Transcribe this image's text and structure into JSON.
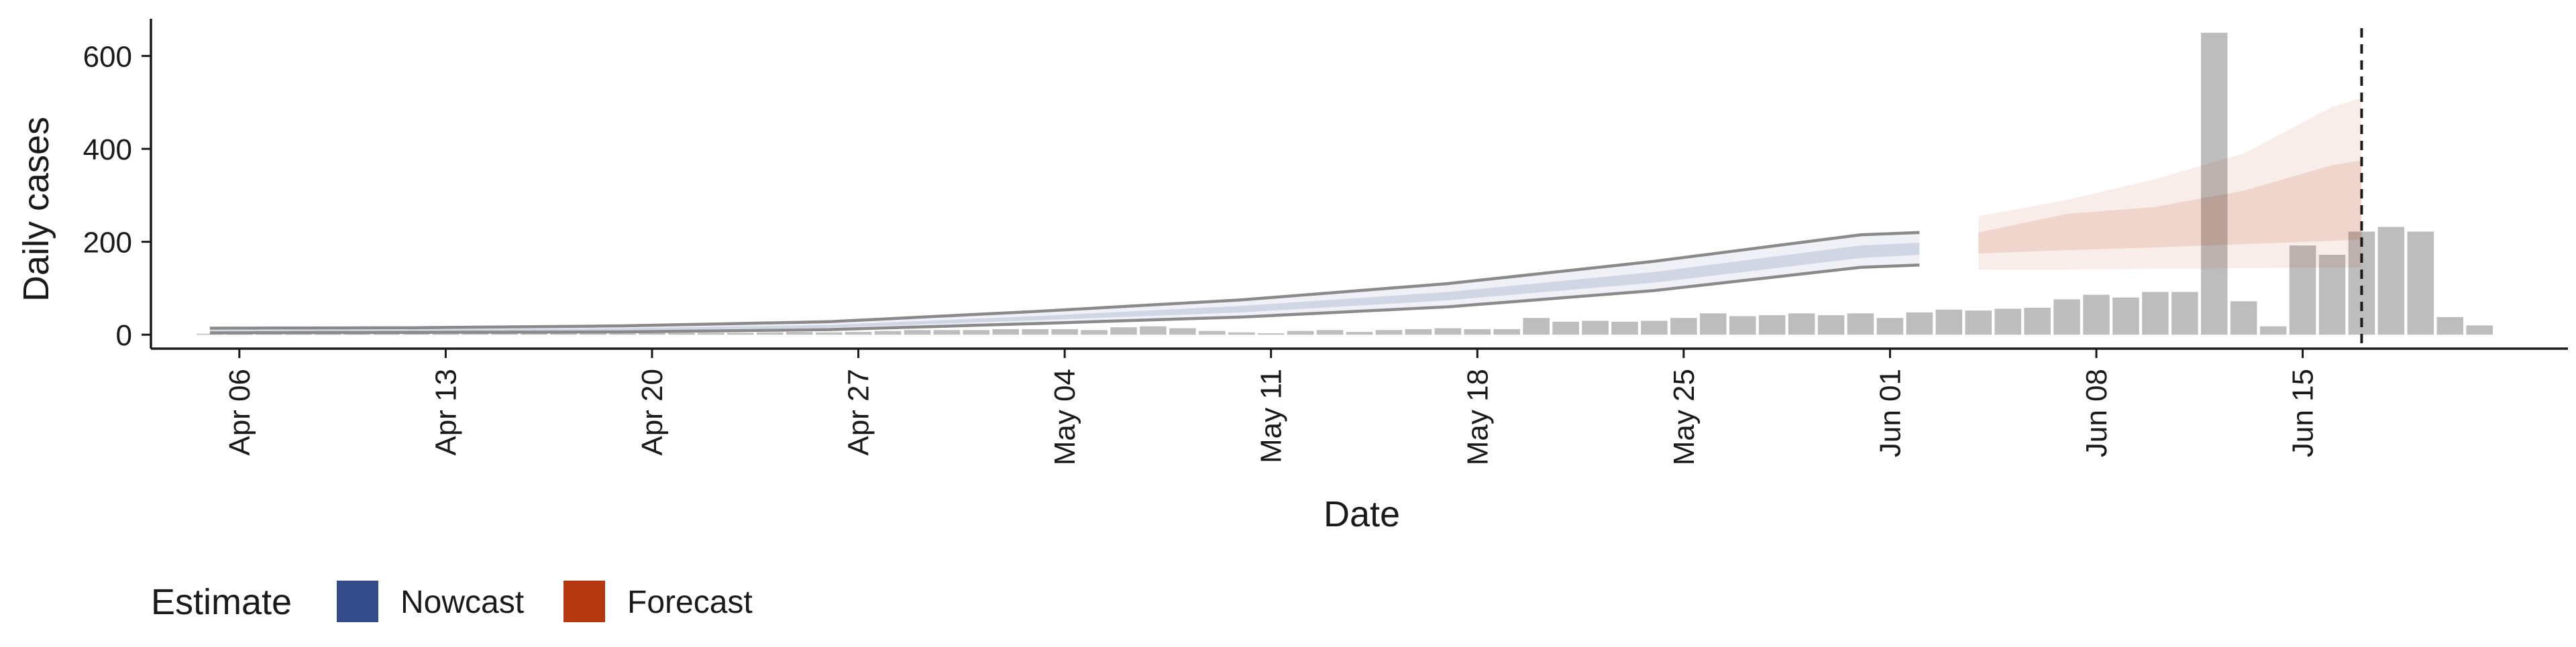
{
  "chart_data": {
    "type": "bar",
    "xlabel": "Date",
    "ylabel": "Daily cases",
    "ylim": [
      -30,
      680
    ],
    "yticks": [
      0,
      200,
      400,
      600
    ],
    "x_start": "2020-04-03",
    "x_end": "2020-06-24",
    "xticks": [
      {
        "date": "2020-04-06",
        "label": "Apr 06"
      },
      {
        "date": "2020-04-13",
        "label": "Apr 13"
      },
      {
        "date": "2020-04-20",
        "label": "Apr 20"
      },
      {
        "date": "2020-04-27",
        "label": "Apr 27"
      },
      {
        "date": "2020-05-04",
        "label": "May 04"
      },
      {
        "date": "2020-05-11",
        "label": "May 11"
      },
      {
        "date": "2020-05-18",
        "label": "May 18"
      },
      {
        "date": "2020-05-25",
        "label": "May 25"
      },
      {
        "date": "2020-06-01",
        "label": "Jun 01"
      },
      {
        "date": "2020-06-08",
        "label": "Jun 08"
      },
      {
        "date": "2020-06-15",
        "label": "Jun 15"
      }
    ],
    "reference_line": {
      "date": "2020-06-17",
      "style": "dashed"
    },
    "legend": {
      "title": "Estimate",
      "position": "bottom-left",
      "entries": [
        {
          "label": "Nowcast",
          "color": "#344b89"
        },
        {
          "label": "Forecast",
          "color": "#b5370f"
        }
      ]
    },
    "colors": {
      "bars": "#bdbdbd",
      "nowcast_band": "#344b89",
      "nowcast_outline": "#8a8a8a",
      "forecast_band": "#b5370f",
      "reference_line": "#1a1a1a"
    },
    "observed_cases": {
      "start_date": "2020-04-05",
      "values": [
        2,
        2,
        2,
        2,
        2,
        2,
        2,
        2,
        2,
        3,
        3,
        3,
        3,
        3,
        3,
        4,
        4,
        4,
        4,
        5,
        6,
        5,
        6,
        8,
        10,
        10,
        10,
        12,
        12,
        12,
        10,
        16,
        18,
        14,
        8,
        5,
        3,
        8,
        10,
        6,
        10,
        12,
        14,
        12,
        12,
        36,
        28,
        30,
        28,
        30,
        36,
        46,
        40,
        42,
        46,
        42,
        46,
        36,
        48,
        54,
        52,
        56,
        58,
        76,
        86,
        80,
        92,
        92,
        650,
        72,
        18,
        192,
        172,
        222,
        232,
        222,
        38,
        20
      ]
    },
    "nowcast": {
      "start_date": "2020-04-05",
      "end_date": "2020-06-02",
      "points": [
        {
          "date": "2020-04-05",
          "lo90": 4,
          "lo50": 7,
          "median": 9,
          "hi50": 10,
          "hi90": 14
        },
        {
          "date": "2020-04-12",
          "lo90": 5,
          "lo50": 8,
          "median": 10,
          "hi50": 11,
          "hi90": 15
        },
        {
          "date": "2020-04-19",
          "lo90": 6,
          "lo50": 9,
          "median": 12,
          "hi50": 14,
          "hi90": 19
        },
        {
          "date": "2020-04-26",
          "lo90": 11,
          "lo50": 15,
          "median": 18,
          "hi50": 21,
          "hi90": 28
        },
        {
          "date": "2020-05-03",
          "lo90": 24,
          "lo50": 31,
          "median": 35,
          "hi50": 40,
          "hi90": 50
        },
        {
          "date": "2020-05-10",
          "lo90": 38,
          "lo50": 48,
          "median": 55,
          "hi50": 62,
          "hi90": 75
        },
        {
          "date": "2020-05-17",
          "lo90": 60,
          "lo50": 74,
          "median": 82,
          "hi50": 92,
          "hi90": 110
        },
        {
          "date": "2020-05-24",
          "lo90": 95,
          "lo50": 112,
          "median": 122,
          "hi50": 135,
          "hi90": 158
        },
        {
          "date": "2020-05-31",
          "lo90": 145,
          "lo50": 165,
          "median": 178,
          "hi50": 192,
          "hi90": 215
        },
        {
          "date": "2020-06-02",
          "lo90": 150,
          "lo50": 172,
          "median": 182,
          "hi50": 198,
          "hi90": 220
        }
      ]
    },
    "forecast": {
      "start_date": "2020-06-04",
      "end_date": "2020-06-17",
      "points": [
        {
          "date": "2020-06-04",
          "lo90": 140,
          "lo50": 175,
          "median": 200,
          "hi50": 220,
          "hi90": 255
        },
        {
          "date": "2020-06-07",
          "lo90": 140,
          "lo50": 182,
          "median": 210,
          "hi50": 260,
          "hi90": 290
        },
        {
          "date": "2020-06-10",
          "lo90": 142,
          "lo50": 188,
          "median": 220,
          "hi50": 275,
          "hi90": 335
        },
        {
          "date": "2020-06-13",
          "lo90": 143,
          "lo50": 195,
          "median": 235,
          "hi50": 310,
          "hi90": 390
        },
        {
          "date": "2020-06-16",
          "lo90": 145,
          "lo50": 202,
          "median": 245,
          "hi50": 365,
          "hi90": 490
        },
        {
          "date": "2020-06-17",
          "lo90": 145,
          "lo50": 205,
          "median": 250,
          "hi50": 375,
          "hi90": 510
        }
      ]
    }
  }
}
